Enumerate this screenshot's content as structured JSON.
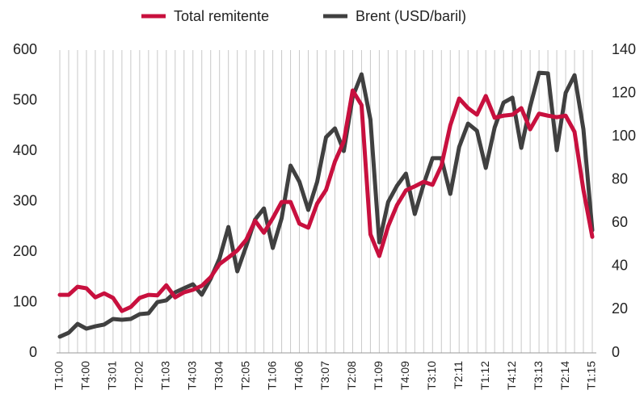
{
  "chart_data": {
    "type": "line",
    "categories": [
      "T1:00",
      null,
      null,
      "T4:00",
      null,
      null,
      "T3:01",
      null,
      null,
      "T2:02",
      null,
      null,
      "T1:03",
      null,
      null,
      "T4:03",
      null,
      null,
      "T3:04",
      null,
      null,
      "T2:05",
      null,
      null,
      "T1:06",
      null,
      null,
      "T4:06",
      null,
      null,
      "T3:07",
      null,
      null,
      "T2:08",
      null,
      null,
      "T1:09",
      null,
      null,
      "T4:09",
      null,
      null,
      "T3:10",
      null,
      null,
      "T2:11",
      null,
      null,
      "T1:12",
      null,
      null,
      "T4:12",
      null,
      null,
      "T3:13",
      null,
      null,
      "T2:14",
      null,
      null,
      "T1:15"
    ],
    "series": [
      {
        "name": "Total remitente",
        "color": "#c8103e",
        "axis": "y",
        "values": [
          115,
          115,
          131,
          128,
          110,
          118,
          109,
          83,
          91,
          109,
          115,
          114,
          134,
          110,
          120,
          125,
          133,
          150,
          176,
          189,
          203,
          224,
          262,
          238,
          267,
          299,
          299,
          256,
          248,
          296,
          323,
          379,
          419,
          520,
          491,
          235,
          192,
          251,
          293,
          322,
          330,
          339,
          333,
          371,
          451,
          504,
          485,
          472,
          509,
          466,
          470,
          472,
          485,
          443,
          474,
          470,
          467,
          470,
          438,
          323,
          230
        ]
      },
      {
        "name": "Brent (USD/baril)",
        "color": "#404040",
        "axis": "y2",
        "values": [
          7.5,
          9.3,
          13.4,
          11.2,
          12.3,
          13.1,
          15.7,
          15.3,
          15.7,
          17.9,
          18.3,
          23.5,
          24.3,
          28,
          29.9,
          31.7,
          26.9,
          34.3,
          43.7,
          58.2,
          37.7,
          49.3,
          61.6,
          66.8,
          48.5,
          62.3,
          86.6,
          79.1,
          66.1,
          79.1,
          99.7,
          103.8,
          93.3,
          118.3,
          128.8,
          107.9,
          51.1,
          69.8,
          77.3,
          82.9,
          64.2,
          78,
          90,
          90,
          73.5,
          95.2,
          106,
          102.7,
          85.5,
          104.2,
          115.7,
          118,
          94.8,
          113.9,
          129.5,
          129.2,
          93.7,
          120.2,
          128.4,
          103.4,
          56.7
        ]
      }
    ],
    "ylim": [
      0,
      600
    ],
    "yticks": [
      0,
      100,
      200,
      300,
      400,
      500,
      600
    ],
    "y2lim": [
      0,
      140
    ],
    "y2ticks": [
      0,
      20,
      40,
      60,
      80,
      100,
      120,
      140
    ],
    "grid": true,
    "legend": "top"
  }
}
